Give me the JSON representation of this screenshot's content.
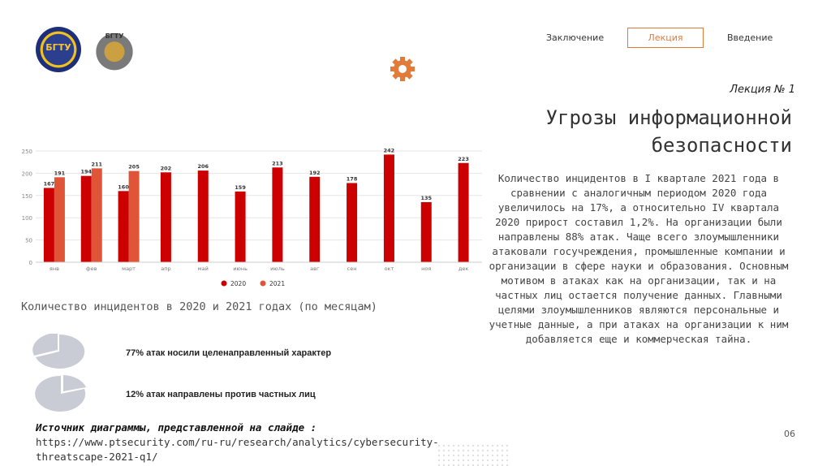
{
  "logos": {
    "left_text": "БГТУ",
    "right_text": "БГТУ"
  },
  "nav": {
    "conclusion": "Заключение",
    "lecture": "Лекция",
    "intro": "Введение"
  },
  "lecture_number": "Лекция № 1",
  "title_lines": [
    "Угрозы информационной",
    "безопасности"
  ],
  "body_text": "Количество инцидентов в I квартале 2021 года в сравнении с аналогичным периодом 2020 года увеличилось на 17%, а относительно IV квартала 2020 прирост составил 1,2%. На организации были направлены 88% атак. Чаще всего злоумышленники атаковали госучреждения, промышленные компании и организации в сфере науки и образования. Основным мотивом в атаках как на организации, так и на частных лиц остается получение данных. Главными целями злоумышленников являются персональные и учетные данные, а при атаках на организации к ним добавляется еще и коммерческая тайна.",
  "chart_caption": "Количество инцидентов в 2020 и 2021 годах (по месяцам)",
  "chart_data": {
    "type": "bar",
    "categories": [
      "янв",
      "фев",
      "март",
      "апр",
      "май",
      "июнь",
      "июль",
      "авг",
      "сен",
      "окт",
      "ноя",
      "дек"
    ],
    "series": [
      {
        "name": "2020",
        "color": "#cc0000",
        "values": [
          167,
          194,
          160,
          202,
          206,
          159,
          213,
          192,
          178,
          242,
          135,
          223
        ]
      },
      {
        "name": "2021",
        "color": "#e05538",
        "values": [
          191,
          211,
          205,
          null,
          null,
          null,
          null,
          null,
          null,
          null,
          null,
          null
        ]
      }
    ],
    "yticks": [
      0,
      50,
      100,
      150,
      200,
      250
    ],
    "ylim": [
      0,
      250
    ],
    "grid": true,
    "legend": "bottom-center"
  },
  "stats": [
    {
      "text": "77% атак носили целенаправленный характер",
      "percent": 77
    },
    {
      "text": "12% атак направлены против частных лиц",
      "percent": 12
    }
  ],
  "source": {
    "title": "Источник диаграммы, представленной на слайде :",
    "lines": [
      "https://www.ptsecurity.com/ru-ru/research/analytics/cybersecurity-",
      "threatscape-2021-q1/"
    ]
  },
  "page_number": "06",
  "colors": {
    "accent": "#e07b39",
    "bar2020": "#cc0000",
    "bar2021": "#e05538",
    "pie": "#c9ccd4"
  }
}
